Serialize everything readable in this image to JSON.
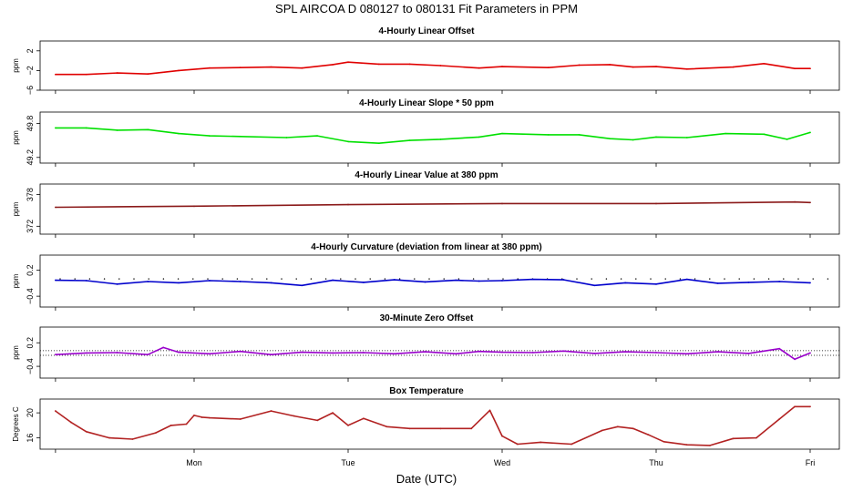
{
  "header": {
    "title": "SPL   AIRCOA D   080127 to 080131   Fit Parameters in PPM"
  },
  "x_axis": {
    "title": "Date (UTC)",
    "tick_labels": [
      "Mon",
      "Tue",
      "Wed",
      "Thu",
      "Fri"
    ],
    "tick_positions_days": [
      1,
      2,
      3,
      4,
      5
    ]
  },
  "chart_data": [
    {
      "type": "line",
      "title": "4-Hourly Linear Offset",
      "ylabel": "ppm",
      "ylim": [
        -6,
        4
      ],
      "yticks": [
        2,
        -2,
        -6
      ],
      "ytick_labels": [
        "2",
        "−2",
        "−6"
      ],
      "xlim": [
        0,
        5.2
      ],
      "color": "#e00000",
      "series": [
        {
          "x": [
            0.1,
            0.3,
            0.5,
            0.7,
            0.9,
            1.1,
            1.3,
            1.5,
            1.7,
            1.9,
            2.0,
            2.2,
            2.4,
            2.6,
            2.85,
            3.0,
            3.3,
            3.5,
            3.7,
            3.85,
            4.0,
            4.2,
            4.5,
            4.7,
            4.9,
            5.0
          ],
          "values": [
            -2.8,
            -2.8,
            -2.5,
            -2.7,
            -2.0,
            -1.5,
            -1.4,
            -1.3,
            -1.5,
            -0.8,
            -0.3,
            -0.7,
            -0.7,
            -1.0,
            -1.5,
            -1.2,
            -1.4,
            -0.9,
            -0.8,
            -1.3,
            -1.2,
            -1.7,
            -1.3,
            -0.6,
            -1.6,
            -1.6
          ]
        }
      ]
    },
    {
      "type": "line",
      "title": "4-Hourly Linear Slope * 50 ppm",
      "ylabel": "ppm",
      "ylim": [
        49.1,
        50.0
      ],
      "yticks": [
        49.8,
        49.2
      ],
      "ytick_labels": [
        "49.8",
        "49.2"
      ],
      "xlim": [
        0,
        5.2
      ],
      "color": "#00e000",
      "series": [
        {
          "x": [
            0.1,
            0.3,
            0.5,
            0.7,
            0.9,
            1.1,
            1.3,
            1.6,
            1.8,
            2.0,
            2.2,
            2.4,
            2.6,
            2.85,
            3.0,
            3.3,
            3.5,
            3.7,
            3.85,
            4.0,
            4.2,
            4.45,
            4.7,
            4.85,
            5.0
          ],
          "values": [
            49.72,
            49.72,
            49.68,
            49.69,
            49.62,
            49.58,
            49.57,
            49.55,
            49.58,
            49.48,
            49.45,
            49.5,
            49.52,
            49.56,
            49.62,
            49.6,
            49.6,
            49.53,
            49.51,
            49.56,
            49.55,
            49.62,
            49.61,
            49.52,
            49.64
          ]
        }
      ]
    },
    {
      "type": "line",
      "title": "4-Hourly Linear Value at 380 ppm",
      "ylabel": "ppm",
      "ylim": [
        370.5,
        380.0
      ],
      "yticks": [
        378,
        372
      ],
      "ytick_labels": [
        "378",
        "372"
      ],
      "xlim": [
        0,
        5.2
      ],
      "color": "#8b1a1a",
      "series": [
        {
          "x": [
            0.1,
            1.0,
            2.0,
            3.0,
            4.0,
            4.9,
            5.0
          ],
          "values": [
            375.6,
            375.8,
            376.1,
            376.3,
            376.3,
            376.6,
            376.5
          ]
        }
      ]
    },
    {
      "type": "line",
      "title": "4-Hourly Curvature (deviation from linear at 380 ppm)",
      "ylabel": "ppm",
      "ylim": [
        -0.65,
        0.55
      ],
      "yticks": [
        0.2,
        -0.4
      ],
      "ytick_labels": [
        "0.2",
        "−0.4"
      ],
      "xlim": [
        0,
        5.2
      ],
      "color": "#0000cc",
      "series": [
        {
          "x": [
            0.1,
            0.3,
            0.5,
            0.7,
            0.9,
            1.1,
            1.3,
            1.5,
            1.7,
            1.9,
            2.1,
            2.3,
            2.5,
            2.7,
            2.85,
            3.0,
            3.2,
            3.4,
            3.6,
            3.8,
            4.0,
            4.2,
            4.4,
            4.6,
            4.8,
            5.0
          ],
          "values": [
            -0.03,
            -0.04,
            -0.12,
            -0.06,
            -0.09,
            -0.04,
            -0.06,
            -0.09,
            -0.15,
            -0.03,
            -0.08,
            -0.02,
            -0.07,
            -0.03,
            -0.05,
            -0.04,
            -0.01,
            -0.02,
            -0.15,
            -0.09,
            -0.12,
            -0.01,
            -0.1,
            -0.08,
            -0.06,
            -0.09
          ]
        }
      ],
      "reference_dots_y": 0.0
    },
    {
      "type": "line",
      "title": "30-Minute Zero Offset",
      "ylabel": "ppm",
      "ylim": [
        -0.7,
        0.6
      ],
      "yticks": [
        0.2,
        -0.4
      ],
      "ytick_labels": [
        "0.2",
        "−0.4"
      ],
      "xlim": [
        0,
        5.2
      ],
      "color": "#9900cc",
      "series": [
        {
          "x": [
            0.1,
            0.3,
            0.5,
            0.7,
            0.8,
            0.9,
            1.1,
            1.3,
            1.5,
            1.7,
            1.9,
            2.1,
            2.3,
            2.5,
            2.7,
            2.85,
            3.0,
            3.2,
            3.4,
            3.6,
            3.8,
            4.0,
            4.2,
            4.4,
            4.6,
            4.8,
            4.9,
            5.0
          ],
          "values": [
            -0.1,
            -0.06,
            -0.05,
            -0.1,
            0.08,
            -0.04,
            -0.08,
            -0.02,
            -0.1,
            -0.04,
            -0.06,
            -0.05,
            -0.08,
            -0.03,
            -0.08,
            -0.02,
            -0.04,
            -0.05,
            -0.01,
            -0.07,
            -0.03,
            -0.05,
            -0.08,
            -0.03,
            -0.07,
            0.05,
            -0.22,
            -0.06
          ]
        }
      ],
      "reference_lines_y": [
        0.0,
        -0.12
      ]
    },
    {
      "type": "line",
      "title": "Box Temperature",
      "ylabel": "Degrees C",
      "ylim": [
        14.2,
        22.2
      ],
      "yticks": [
        20,
        16
      ],
      "ytick_labels": [
        "20",
        "16"
      ],
      "xlim": [
        0,
        5.2
      ],
      "color": "#b22222",
      "series": [
        {
          "x": [
            0.1,
            0.2,
            0.3,
            0.45,
            0.6,
            0.75,
            0.85,
            0.95,
            1.0,
            1.05,
            1.1,
            1.3,
            1.5,
            1.65,
            1.8,
            1.9,
            2.0,
            2.1,
            2.25,
            2.4,
            2.6,
            2.8,
            2.92,
            3.0,
            3.1,
            3.25,
            3.45,
            3.65,
            3.75,
            3.85,
            3.95,
            4.05,
            4.2,
            4.35,
            4.5,
            4.65,
            4.8,
            4.9,
            5.0
          ],
          "values": [
            20.3,
            18.5,
            17.0,
            16.0,
            15.8,
            16.8,
            18.0,
            18.2,
            19.6,
            19.3,
            19.2,
            19.0,
            20.3,
            19.5,
            18.8,
            20.0,
            18.0,
            19.1,
            17.8,
            17.5,
            17.5,
            17.5,
            20.4,
            16.3,
            15.0,
            15.3,
            15.0,
            17.2,
            17.8,
            17.5,
            16.5,
            15.4,
            14.9,
            14.8,
            15.9,
            16.0,
            19.0,
            21.0,
            21.0
          ]
        }
      ]
    }
  ]
}
